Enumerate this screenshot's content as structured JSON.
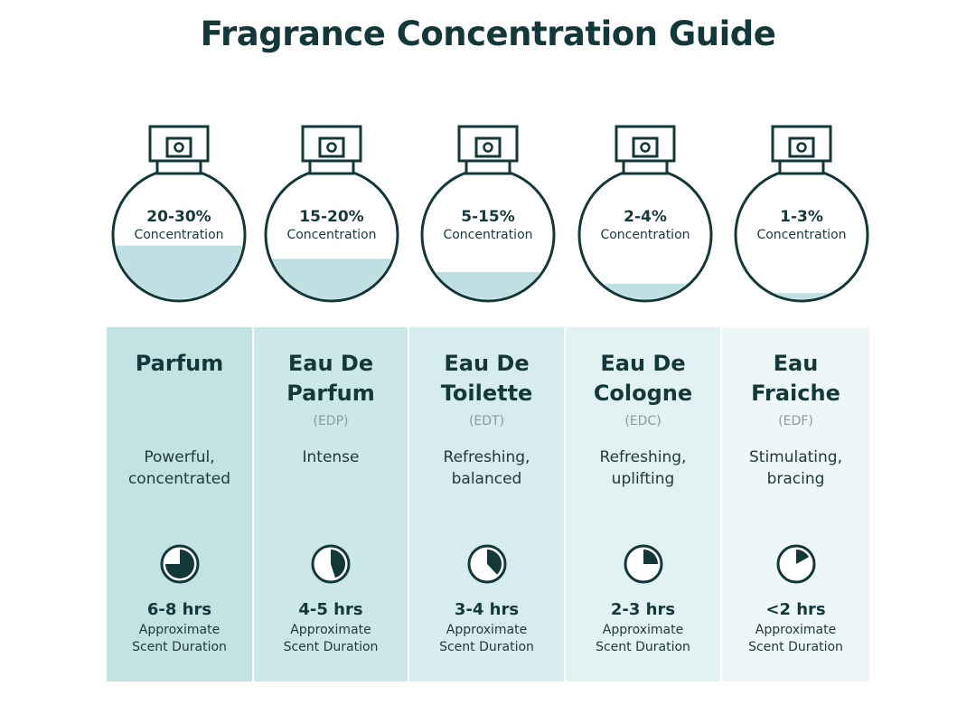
{
  "title": "Fragrance Concentration Guide",
  "colors": {
    "ink": "#12383a",
    "liquid": "#bfe0e3",
    "column_tints": [
      "#c3e2e4",
      "#cce7e8",
      "#d7ecee",
      "#e2f1f2",
      "#eef7f8"
    ]
  },
  "duration_label_line1": "Approximate",
  "duration_label_line2": "Scent Duration",
  "types": [
    {
      "concentration": "20-30%",
      "concentration_label": "Concentration",
      "fill_fraction": 0.42,
      "name_line1": "Parfum",
      "name_line2": "",
      "abbr": "",
      "desc_line1": "Powerful,",
      "desc_line2": "concentrated",
      "clock_icon": "clock-pie-icon",
      "clock_fraction": 0.75,
      "duration": "6-8 hrs"
    },
    {
      "concentration": "15-20%",
      "concentration_label": "Concentration",
      "fill_fraction": 0.32,
      "name_line1": "Eau De",
      "name_line2": "Parfum",
      "abbr": "(EDP)",
      "desc_line1": "Intense",
      "desc_line2": "",
      "clock_icon": "clock-pie-icon",
      "clock_fraction": 0.45,
      "duration": "4-5 hrs"
    },
    {
      "concentration": "5-15%",
      "concentration_label": "Concentration",
      "fill_fraction": 0.22,
      "name_line1": "Eau De",
      "name_line2": "Toilette",
      "abbr": "(EDT)",
      "desc_line1": "Refreshing,",
      "desc_line2": "balanced",
      "clock_icon": "clock-pie-icon",
      "clock_fraction": 0.38,
      "duration": "3-4 hrs"
    },
    {
      "concentration": "2-4%",
      "concentration_label": "Concentration",
      "fill_fraction": 0.13,
      "name_line1": "Eau De",
      "name_line2": "Cologne",
      "abbr": "(EDC)",
      "desc_line1": "Refreshing,",
      "desc_line2": "uplifting",
      "clock_icon": "clock-pie-icon",
      "clock_fraction": 0.25,
      "duration": "2-3 hrs"
    },
    {
      "concentration": "1-3%",
      "concentration_label": "Concentration",
      "fill_fraction": 0.06,
      "name_line1": "Eau",
      "name_line2": "Fraiche",
      "abbr": "(EDF)",
      "desc_line1": "Stimulating,",
      "desc_line2": "bracing",
      "clock_icon": "clock-pie-icon",
      "clock_fraction": 0.17,
      "duration": "<2 hrs"
    }
  ]
}
